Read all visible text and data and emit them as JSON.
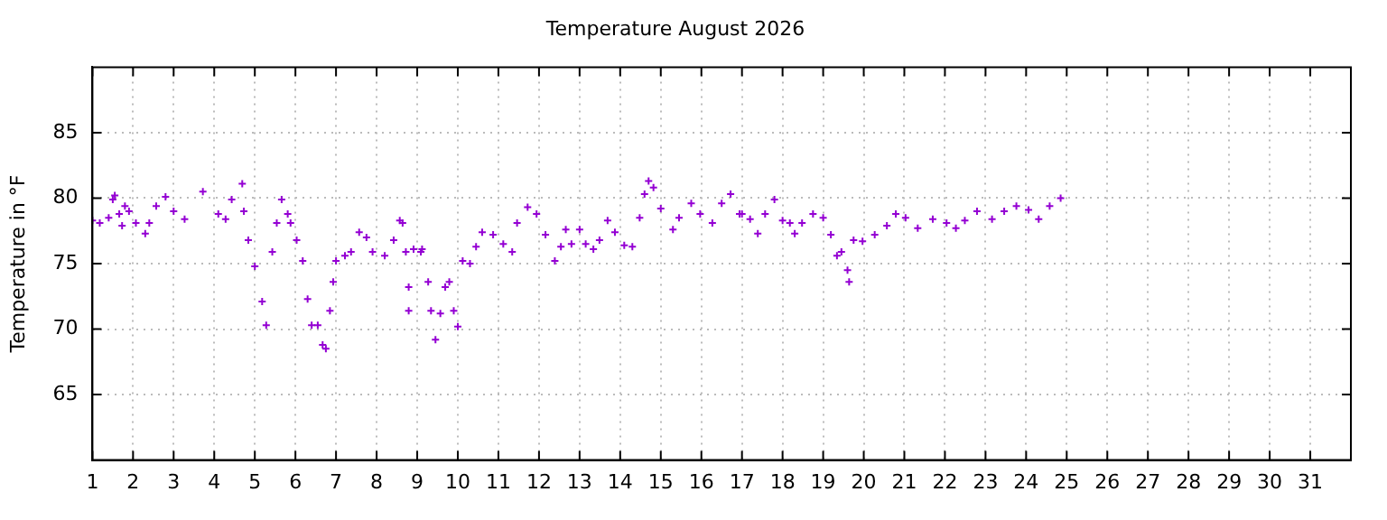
{
  "chart_data": {
    "type": "scatter",
    "title": "Temperature August 2026",
    "ylabel": "Temperature in °F",
    "xlim": [
      1,
      32
    ],
    "xticks": [
      1,
      2,
      3,
      4,
      5,
      6,
      7,
      8,
      9,
      10,
      11,
      12,
      13,
      14,
      15,
      16,
      17,
      18,
      19,
      20,
      21,
      22,
      23,
      24,
      25,
      26,
      27,
      28,
      29,
      30,
      31
    ],
    "ylim": [
      60,
      90
    ],
    "yticks": [
      65,
      70,
      75,
      80,
      85
    ],
    "grid": true,
    "marker": "cross",
    "legend": false,
    "series": [
      {
        "color": "#9400d3",
        "x": [
          1.0,
          1.18,
          1.4,
          1.5,
          1.55,
          1.66,
          1.73,
          1.8,
          1.9,
          2.07,
          2.3,
          2.4,
          2.57,
          2.8,
          3.0,
          3.27,
          3.72,
          4.1,
          4.28,
          4.43,
          4.69,
          4.73,
          4.84,
          5.0,
          5.18,
          5.28,
          5.43,
          5.54,
          5.66,
          5.81,
          5.88,
          6.03,
          6.18,
          6.3,
          6.4,
          6.55,
          6.67,
          6.75,
          6.85,
          6.93,
          7.0,
          7.22,
          7.37,
          7.57,
          7.75,
          7.9,
          8.2,
          8.42,
          8.57,
          8.64,
          8.72,
          8.79,
          8.79,
          8.91,
          9.09,
          9.12,
          9.27,
          9.34,
          9.45,
          9.57,
          9.69,
          9.79,
          9.9,
          10.0,
          10.12,
          10.3,
          10.45,
          10.6,
          10.87,
          11.12,
          11.34,
          11.46,
          11.72,
          11.94,
          12.16,
          12.39,
          12.54,
          12.66,
          12.8,
          13.0,
          13.15,
          13.34,
          13.49,
          13.69,
          13.87,
          14.1,
          14.3,
          14.48,
          14.6,
          14.7,
          14.82,
          15.0,
          15.3,
          15.45,
          15.75,
          15.97,
          16.27,
          16.5,
          16.72,
          16.94,
          17.0,
          17.2,
          17.39,
          17.57,
          17.8,
          18.0,
          18.18,
          18.3,
          18.48,
          18.75,
          19.0,
          19.19,
          19.34,
          19.45,
          19.6,
          19.64,
          19.75,
          19.97,
          20.27,
          20.57,
          20.79,
          21.03,
          21.33,
          21.7,
          22.04,
          22.27,
          22.49,
          22.79,
          23.16,
          23.46,
          23.76,
          24.06,
          24.31,
          24.58,
          24.85
        ],
        "values": [
          78.3,
          78.1,
          78.5,
          79.9,
          80.2,
          78.8,
          77.9,
          79.4,
          79.0,
          78.1,
          77.3,
          78.1,
          79.4,
          80.1,
          79.0,
          78.4,
          80.5,
          78.8,
          78.4,
          79.9,
          81.1,
          79.0,
          76.8,
          74.8,
          72.1,
          70.3,
          75.9,
          78.1,
          79.9,
          78.8,
          78.1,
          76.8,
          75.2,
          72.3,
          70.3,
          70.3,
          68.8,
          68.5,
          71.4,
          73.6,
          75.2,
          75.6,
          75.9,
          77.4,
          77.0,
          75.9,
          75.6,
          76.8,
          78.3,
          78.1,
          75.9,
          73.2,
          71.4,
          76.1,
          75.9,
          76.1,
          73.6,
          71.4,
          69.2,
          71.2,
          73.2,
          73.6,
          71.4,
          70.2,
          75.2,
          75.0,
          76.3,
          77.4,
          77.2,
          76.5,
          75.9,
          78.1,
          79.3,
          78.8,
          77.2,
          75.2,
          76.3,
          77.6,
          76.5,
          77.6,
          76.5,
          76.1,
          76.8,
          78.3,
          77.4,
          76.4,
          76.3,
          78.5,
          80.3,
          81.3,
          80.8,
          79.2,
          77.6,
          78.5,
          79.6,
          78.8,
          78.1,
          79.6,
          80.3,
          78.8,
          78.8,
          78.4,
          77.3,
          78.8,
          79.9,
          78.3,
          78.1,
          77.3,
          78.1,
          78.8,
          78.5,
          77.2,
          75.6,
          75.9,
          74.5,
          73.6,
          76.8,
          76.7,
          77.2,
          77.9,
          78.8,
          78.5,
          77.7,
          78.4,
          78.1,
          77.7,
          78.3,
          79.0,
          78.4,
          79.0,
          79.4,
          79.1,
          78.4,
          79.4,
          80.0
        ]
      }
    ]
  }
}
